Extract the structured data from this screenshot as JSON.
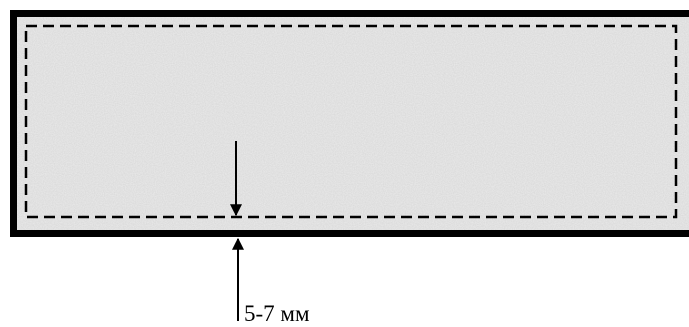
{
  "diagram": {
    "dimension_label": "5-7 мм"
  },
  "colors": {
    "panel_fill": "#ececec",
    "outline": "#000000",
    "background": "#ffffff"
  }
}
